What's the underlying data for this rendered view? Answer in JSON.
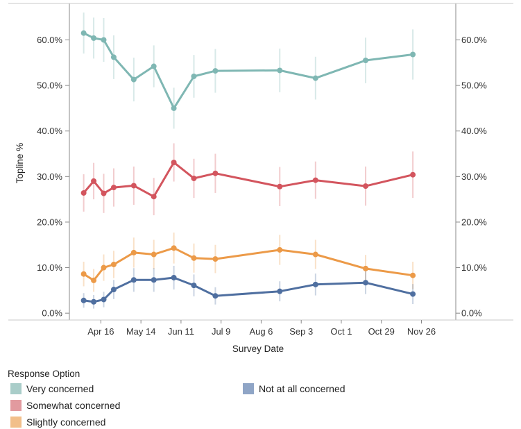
{
  "chart_data": {
    "type": "line",
    "xlabel": "Survey Date",
    "ylabel": "Topline %",
    "x_tick_labels": [
      "Apr 16",
      "May 14",
      "Jun 11",
      "Jul 9",
      "Aug 6",
      "Sep 3",
      "Oct 1",
      "Oct 29",
      "Nov 26"
    ],
    "y_tick_labels": [
      "0.0%",
      "10.0%",
      "20.0%",
      "30.0%",
      "40.0%",
      "50.0%",
      "60.0%"
    ],
    "y_ticks": [
      0,
      10,
      20,
      30,
      40,
      50,
      60
    ],
    "ylim": [
      -1.5,
      68
    ],
    "x_ticks": [
      "2020-04-16",
      "2020-05-14",
      "2020-06-11",
      "2020-07-09",
      "2020-08-06",
      "2020-09-03",
      "2020-10-01",
      "2020-10-29",
      "2020-11-26"
    ],
    "xlim": [
      "2020-03-25",
      "2020-12-20"
    ],
    "grid": false,
    "error_bars": true,
    "legend": {
      "title": "Response Option",
      "placement": "bottom"
    },
    "x": [
      "2020-04-04",
      "2020-04-11",
      "2020-04-18",
      "2020-04-25",
      "2020-05-09",
      "2020-05-23",
      "2020-06-06",
      "2020-06-20",
      "2020-07-05",
      "2020-08-19",
      "2020-09-13",
      "2020-10-18",
      "2020-11-20"
    ],
    "series": [
      {
        "name": "Very concerned",
        "color": "#7fb7b3",
        "legend_color": "#a9cdc9",
        "values": [
          61.5,
          60.4,
          60.0,
          56.2,
          51.3,
          54.2,
          45.0,
          52.0,
          53.2,
          53.3,
          51.6,
          55.5,
          56.8
        ],
        "error": [
          4.5,
          4.5,
          4.8,
          4.8,
          4.8,
          4.6,
          4.5,
          4.7,
          4.8,
          4.8,
          4.7,
          5.0,
          5.5
        ]
      },
      {
        "name": "Somewhat concerned",
        "color": "#d3555e",
        "legend_color": "#e29a9f",
        "values": [
          26.4,
          29.0,
          26.3,
          27.6,
          28.0,
          25.6,
          33.1,
          29.6,
          30.7,
          27.8,
          29.2,
          27.9,
          30.4
        ],
        "error": [
          4.1,
          4.0,
          4.3,
          4.2,
          4.2,
          4.1,
          4.2,
          4.3,
          4.3,
          4.3,
          4.1,
          4.3,
          5.1
        ]
      },
      {
        "name": "Slightly concerned",
        "color": "#ec9a48",
        "legend_color": "#f2bf8a",
        "values": [
          8.6,
          7.2,
          10.0,
          10.7,
          13.3,
          12.9,
          14.3,
          12.1,
          11.9,
          13.9,
          12.9,
          9.8,
          8.3
        ],
        "error": [
          2.7,
          2.5,
          2.9,
          3.0,
          3.3,
          3.2,
          3.4,
          3.2,
          3.1,
          3.3,
          3.2,
          3.0,
          3.0
        ]
      },
      {
        "name": "Not at all concerned",
        "color": "#4f6fa0",
        "legend_color": "#8fa5c6",
        "values": [
          2.8,
          2.5,
          3.0,
          5.2,
          7.3,
          7.3,
          7.8,
          6.1,
          3.8,
          4.8,
          6.3,
          6.7,
          4.2
        ],
        "error": [
          1.6,
          1.5,
          1.7,
          2.1,
          2.6,
          2.6,
          2.6,
          2.4,
          1.9,
          2.2,
          2.4,
          2.5,
          2.2
        ]
      }
    ]
  }
}
